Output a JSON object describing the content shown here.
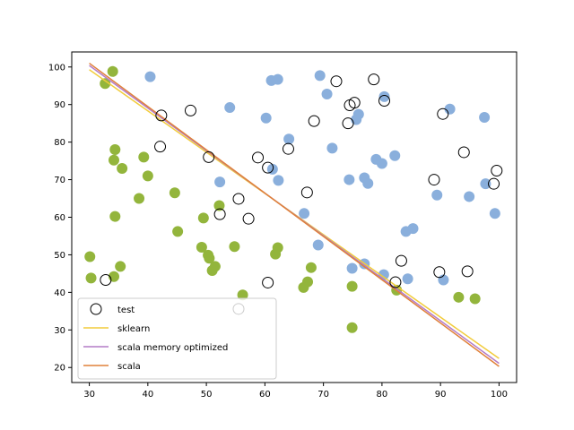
{
  "chart_data": {
    "type": "scatter",
    "title": "",
    "xlabel": "",
    "ylabel": "",
    "xlim": [
      27,
      103
    ],
    "ylim": [
      16,
      104
    ],
    "xticks": [
      "30",
      "40",
      "50",
      "60",
      "70",
      "80",
      "90",
      "100"
    ],
    "yticks": [
      "20",
      "30",
      "40",
      "50",
      "60",
      "70",
      "80",
      "90",
      "100"
    ],
    "grid": false,
    "legend_position": "lower-left",
    "scatter_series": [
      {
        "color": "#8aafdc",
        "points": [
          [
            40.4,
            97.4
          ],
          [
            54.0,
            89.2
          ],
          [
            60.2,
            86.4
          ],
          [
            61.1,
            96.4
          ],
          [
            62.2,
            96.7
          ],
          [
            64.1,
            80.8
          ],
          [
            69.4,
            97.7
          ],
          [
            70.6,
            92.8
          ],
          [
            71.5,
            78.4
          ],
          [
            74.4,
            70.0
          ],
          [
            75.6,
            86.0
          ],
          [
            76.0,
            87.4
          ],
          [
            77.0,
            70.5
          ],
          [
            77.6,
            69.0
          ],
          [
            79.0,
            75.4
          ],
          [
            80.0,
            74.3
          ],
          [
            80.4,
            92.1
          ],
          [
            82.2,
            76.4
          ],
          [
            89.4,
            65.9
          ],
          [
            91.6,
            88.8
          ],
          [
            94.9,
            65.5
          ],
          [
            97.5,
            86.6
          ],
          [
            97.7,
            68.9
          ],
          [
            99.3,
            61.0
          ],
          [
            52.3,
            69.4
          ],
          [
            61.3,
            72.8
          ],
          [
            62.3,
            69.8
          ],
          [
            66.7,
            61.0
          ],
          [
            69.1,
            52.6
          ],
          [
            74.9,
            46.4
          ],
          [
            77.0,
            47.6
          ],
          [
            80.3,
            44.7
          ],
          [
            84.1,
            56.2
          ],
          [
            85.3,
            57.0
          ],
          [
            84.4,
            43.6
          ],
          [
            90.5,
            43.3
          ]
        ]
      },
      {
        "color": "#93b53c",
        "points": [
          [
            32.7,
            95.6
          ],
          [
            34.0,
            98.8
          ],
          [
            34.4,
            78.0
          ],
          [
            34.2,
            75.2
          ],
          [
            35.6,
            73.0
          ],
          [
            34.4,
            60.2
          ],
          [
            39.3,
            76.0
          ],
          [
            40.0,
            71.0
          ],
          [
            38.5,
            65.0
          ],
          [
            44.6,
            66.5
          ],
          [
            45.1,
            56.2
          ],
          [
            30.1,
            49.5
          ],
          [
            30.3,
            43.8
          ],
          [
            35.3,
            46.9
          ],
          [
            34.2,
            44.2
          ],
          [
            49.5,
            59.8
          ],
          [
            49.2,
            52.0
          ],
          [
            50.3,
            49.9
          ],
          [
            50.5,
            49.1
          ],
          [
            51.5,
            46.9
          ],
          [
            51.0,
            45.8
          ],
          [
            52.2,
            63.1
          ],
          [
            54.8,
            52.2
          ],
          [
            56.2,
            39.3
          ],
          [
            61.8,
            50.2
          ],
          [
            62.2,
            51.9
          ],
          [
            67.9,
            46.6
          ],
          [
            67.3,
            42.8
          ],
          [
            66.6,
            41.3
          ],
          [
            74.9,
            41.6
          ],
          [
            74.9,
            30.6
          ],
          [
            82.5,
            40.6
          ],
          [
            93.1,
            38.7
          ],
          [
            95.9,
            38.3
          ]
        ]
      }
    ],
    "series": [
      {
        "name": "test",
        "type": "scatter",
        "marker": "open-circle",
        "color": "#000000",
        "points": [
          [
            42.3,
            87.1
          ],
          [
            42.1,
            78.8
          ],
          [
            47.3,
            88.4
          ],
          [
            50.4,
            76.0
          ],
          [
            55.5,
            64.9
          ],
          [
            52.3,
            60.8
          ],
          [
            57.2,
            59.6
          ],
          [
            32.8,
            43.3
          ],
          [
            55.5,
            35.6
          ],
          [
            58.8,
            75.9
          ],
          [
            60.5,
            73.2
          ],
          [
            60.5,
            42.6
          ],
          [
            64.0,
            78.2
          ],
          [
            67.2,
            66.6
          ],
          [
            68.4,
            85.6
          ],
          [
            72.2,
            96.2
          ],
          [
            74.2,
            85.0
          ],
          [
            74.5,
            89.8
          ],
          [
            75.3,
            90.5
          ],
          [
            78.6,
            96.7
          ],
          [
            80.4,
            91.0
          ],
          [
            82.3,
            42.7
          ],
          [
            83.3,
            48.4
          ],
          [
            88.9,
            70.0
          ],
          [
            89.8,
            45.4
          ],
          [
            90.4,
            87.5
          ],
          [
            94.0,
            77.3
          ],
          [
            94.6,
            45.6
          ],
          [
            99.1,
            68.9
          ],
          [
            99.6,
            72.4
          ]
        ]
      },
      {
        "name": "sklearn",
        "type": "line",
        "color": "#f2cc3c",
        "x": [
          30,
          100
        ],
        "y": [
          99.3,
          22.4
        ]
      },
      {
        "name": "scala memory optimized",
        "type": "line",
        "color": "#b47cc6",
        "x": [
          30,
          100
        ],
        "y": [
          100.4,
          21.1
        ]
      },
      {
        "name": "scala",
        "type": "line",
        "color": "#e0813a",
        "x": [
          30,
          100
        ],
        "y": [
          101.0,
          20.3
        ]
      }
    ]
  }
}
